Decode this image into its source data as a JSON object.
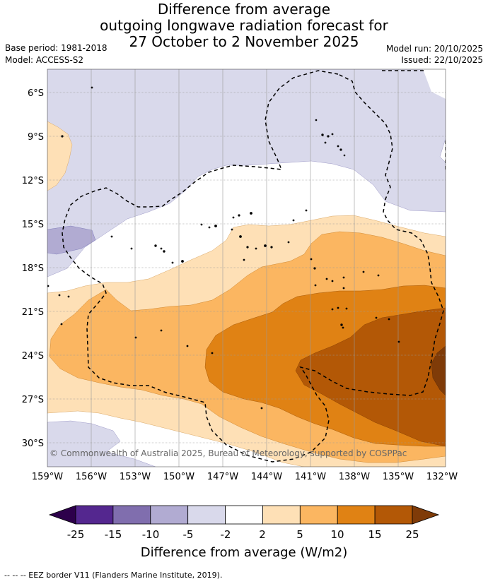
{
  "title": {
    "line1": "Difference from average",
    "line2": "outgoing longwave radiation forecast for",
    "line3": "27 October to 2 November 2025"
  },
  "meta": {
    "base_period": "Base period: 1981-2018",
    "model": "Model: ACCESS-S2",
    "model_run": "Model run: 20/10/2025",
    "issued": "Issued: 22/10/2025"
  },
  "map": {
    "lat_labels": [
      "6°S",
      "9°S",
      "12°S",
      "15°S",
      "18°S",
      "21°S",
      "24°S",
      "27°S",
      "30°S"
    ],
    "lon_labels": [
      "159°W",
      "156°W",
      "153°W",
      "150°W",
      "147°W",
      "144°W",
      "141°W",
      "138°W",
      "135°W",
      "132°W"
    ],
    "copyright": "© Commonwealth of Australia 2025, Bureau of Meteorology, supported by COSPPac"
  },
  "colorbar": {
    "title": "Difference from average (W/m2)",
    "labels": [
      "-25",
      "-15",
      "-10",
      "-5",
      "-2",
      "2",
      "5",
      "10",
      "15",
      "25"
    ],
    "colors": [
      "#54278f",
      "#806eae",
      "#b1abd2",
      "#d9d9eb",
      "#ffffff",
      "#fee0b6",
      "#fbb661",
      "#e08214",
      "#b35806",
      "#7f3b08"
    ],
    "under_color": "#2d004b",
    "over_color": "#7f3b08"
  },
  "footer": {
    "legend": "--  --  -- EEZ border V11 (Flanders Marine Institute, 2019)."
  }
}
